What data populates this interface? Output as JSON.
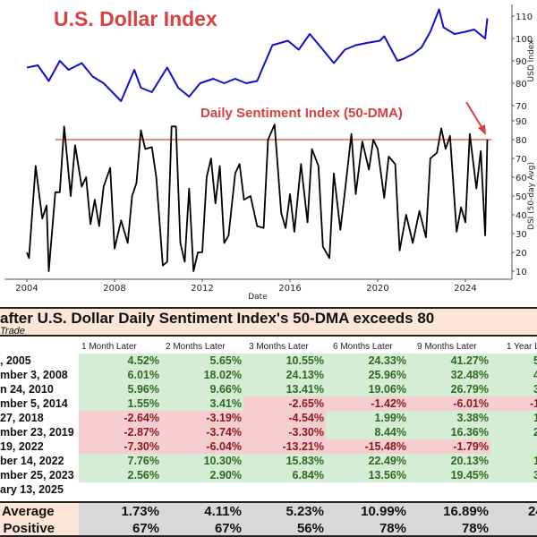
{
  "chart_data": [
    {
      "type": "line",
      "title": "U.S. Dollar Index",
      "ylabel": "USD Index",
      "xlabel": "Date",
      "ylim": [
        70,
        115
      ],
      "yticks": [
        70,
        80,
        90,
        100,
        110
      ],
      "x": [
        2004.0,
        2004.5,
        2005.0,
        2005.5,
        2005.9,
        2006.5,
        2007.0,
        2007.5,
        2008.0,
        2008.3,
        2008.9,
        2009.2,
        2009.7,
        2010.4,
        2010.9,
        2011.4,
        2011.9,
        2012.5,
        2013.0,
        2013.5,
        2014.0,
        2014.5,
        2015.2,
        2015.9,
        2016.4,
        2016.9,
        2017.5,
        2018.0,
        2018.5,
        2019.0,
        2019.5,
        2020.1,
        2020.3,
        2020.9,
        2021.2,
        2021.6,
        2022.0,
        2022.4,
        2022.8,
        2023.0,
        2023.5,
        2024.0,
        2024.4,
        2024.9,
        2025.0
      ],
      "y": [
        87,
        88,
        81,
        90,
        86,
        89,
        83,
        80,
        75,
        72,
        86,
        78,
        76,
        87,
        78,
        74,
        80,
        82,
        80,
        82,
        80,
        81,
        97,
        99,
        95,
        102,
        95,
        89,
        95,
        97,
        98,
        99,
        101,
        90,
        91,
        93,
        96,
        103,
        113,
        105,
        102,
        103,
        104,
        100,
        109
      ]
    },
    {
      "type": "line",
      "title": "Daily Sentiment Index (50-DMA)",
      "ylabel": "DSI (50-day Avg)",
      "xlabel": "Date",
      "ylim": [
        5,
        90
      ],
      "yticks": [
        10,
        20,
        30,
        40,
        50,
        60,
        70,
        80,
        90
      ],
      "xticks": [
        2004,
        2008,
        2012,
        2016,
        2020,
        2024
      ],
      "threshold": 80,
      "x": [
        2004.0,
        2004.1,
        2004.4,
        2004.7,
        2004.9,
        2005.0,
        2005.3,
        2005.5,
        2005.7,
        2006.0,
        2006.2,
        2006.5,
        2006.7,
        2006.9,
        2007.1,
        2007.3,
        2007.5,
        2007.8,
        2008.0,
        2008.3,
        2008.6,
        2008.8,
        2009.0,
        2009.2,
        2009.4,
        2009.7,
        2009.9,
        2010.2,
        2010.4,
        2010.6,
        2010.8,
        2011.0,
        2011.2,
        2011.4,
        2011.6,
        2011.8,
        2012.0,
        2012.2,
        2012.4,
        2012.6,
        2012.8,
        2013.0,
        2013.2,
        2013.5,
        2013.7,
        2013.9,
        2014.2,
        2014.5,
        2014.8,
        2015.0,
        2015.3,
        2015.6,
        2015.8,
        2016.0,
        2016.2,
        2016.5,
        2016.8,
        2017.0,
        2017.3,
        2017.5,
        2017.8,
        2018.0,
        2018.3,
        2018.5,
        2018.8,
        2019.0,
        2019.3,
        2019.6,
        2019.8,
        2020.0,
        2020.3,
        2020.5,
        2020.8,
        2021.0,
        2021.3,
        2021.6,
        2021.9,
        2022.2,
        2022.4,
        2022.7,
        2022.9,
        2023.1,
        2023.3,
        2023.6,
        2023.8,
        2024.0,
        2024.2,
        2024.5,
        2024.7,
        2024.9,
        2025.0
      ],
      "y": [
        20,
        17,
        66,
        38,
        45,
        10,
        52,
        52,
        87,
        50,
        77,
        55,
        60,
        35,
        48,
        34,
        55,
        65,
        22,
        37,
        25,
        50,
        57,
        85,
        75,
        76,
        60,
        13,
        15,
        87,
        87,
        25,
        15,
        54,
        10,
        20,
        20,
        60,
        70,
        46,
        66,
        25,
        29,
        62,
        67,
        48,
        50,
        34,
        33,
        80,
        88,
        41,
        33,
        51,
        31,
        67,
        36,
        75,
        66,
        23,
        17,
        62,
        32,
        52,
        83,
        51,
        79,
        64,
        80,
        75,
        49,
        71,
        67,
        21,
        40,
        25,
        42,
        28,
        70,
        73,
        86,
        75,
        82,
        31,
        44,
        36,
        83,
        54,
        74,
        29,
        80
      ]
    }
  ],
  "chart_labels": {
    "usd_title": "U.S. Dollar Index",
    "dsi_title": "Daily Sentiment Index (50-DMA)",
    "usd_ylabel": "USD Index",
    "dsi_ylabel": "DSI (50-day Avg)",
    "xlabel": "Date",
    "usd_ticks": [
      "70",
      "80",
      "90",
      "100",
      "110"
    ],
    "dsi_ticks": [
      "10",
      "20",
      "30",
      "40",
      "50",
      "60",
      "70",
      "80",
      "90"
    ],
    "x_ticks": [
      "2004",
      "2008",
      "2012",
      "2016",
      "2020",
      "2024"
    ]
  },
  "colors": {
    "usd_line": "#1010c8",
    "dsi_line": "#000000",
    "threshold_line": "#d94040",
    "title_red": "#d94040",
    "pos_bg": "#d4edd4",
    "neg_bg": "#f6cdd1"
  },
  "table": {
    "title": "after U.S. Dollar Daily Sentiment Index's 50-DMA exceeds 80",
    "subtitle": "Trade",
    "columns": [
      "1 Month Later",
      "2 Months Later",
      "3 Months Later",
      "6 Months Later",
      "9 Months Later",
      "1 Year Later"
    ],
    "rows": [
      {
        "label": ", 2005",
        "values": [
          "4.52%",
          "5.65%",
          "10.55%",
          "24.33%",
          "41.27%",
          "5"
        ]
      },
      {
        "label": "mber 3, 2008",
        "values": [
          "6.01%",
          "18.02%",
          "24.13%",
          "25.96%",
          "32.48%",
          "4"
        ]
      },
      {
        "label": "n 24, 2010",
        "values": [
          "5.96%",
          "9.66%",
          "13.41%",
          "19.06%",
          "26.79%",
          "3"
        ]
      },
      {
        "label": "mber 5, 2014",
        "values": [
          "1.55%",
          "3.41%",
          "-2.65%",
          "-1.42%",
          "-6.01%",
          "-1"
        ]
      },
      {
        "label": "27, 2018",
        "values": [
          "-2.64%",
          "-3.19%",
          "-4.54%",
          "1.99%",
          "3.38%",
          "1"
        ]
      },
      {
        "label": "mber 23, 2019",
        "values": [
          "-2.87%",
          "-3.74%",
          "-3.30%",
          "8.44%",
          "16.36%",
          "2"
        ]
      },
      {
        "label": "19, 2022",
        "values": [
          "-7.30%",
          "-6.04%",
          "-13.21%",
          "-15.48%",
          "-1.79%",
          ""
        ]
      },
      {
        "label": "ber 14, 2022",
        "values": [
          "7.76%",
          "10.30%",
          "15.83%",
          "22.49%",
          "20.13%",
          "1"
        ]
      },
      {
        "label": "mber 25, 2023",
        "values": [
          "2.56%",
          "2.90%",
          "6.84%",
          "13.56%",
          "19.45%",
          "3"
        ]
      },
      {
        "label": "ary 13, 2025",
        "values": [
          "",
          "",
          "",
          "",
          "",
          ""
        ]
      }
    ],
    "row_signs": [
      [
        "pos",
        "pos",
        "pos",
        "pos",
        "pos",
        "pos"
      ],
      [
        "pos",
        "pos",
        "pos",
        "pos",
        "pos",
        "pos"
      ],
      [
        "pos",
        "pos",
        "pos",
        "pos",
        "pos",
        "pos"
      ],
      [
        "pos",
        "pos",
        "neg",
        "neg",
        "neg",
        "neg"
      ],
      [
        "neg",
        "neg",
        "neg",
        "pos",
        "pos",
        "pos"
      ],
      [
        "neg",
        "neg",
        "neg",
        "pos",
        "pos",
        "pos"
      ],
      [
        "neg",
        "neg",
        "neg",
        "neg",
        "neg",
        "pos"
      ],
      [
        "pos",
        "pos",
        "pos",
        "pos",
        "pos",
        "pos"
      ],
      [
        "pos",
        "pos",
        "pos",
        "pos",
        "pos",
        "pos"
      ],
      [
        "empty",
        "empty",
        "empty",
        "empty",
        "empty",
        "empty"
      ]
    ],
    "average": {
      "label": "Average",
      "values": [
        "1.73%",
        "4.11%",
        "5.23%",
        "10.99%",
        "16.89%",
        "24"
      ]
    },
    "positive": {
      "label": "% Positive",
      "values": [
        "67%",
        "67%",
        "56%",
        "78%",
        "78%",
        ""
      ]
    }
  }
}
